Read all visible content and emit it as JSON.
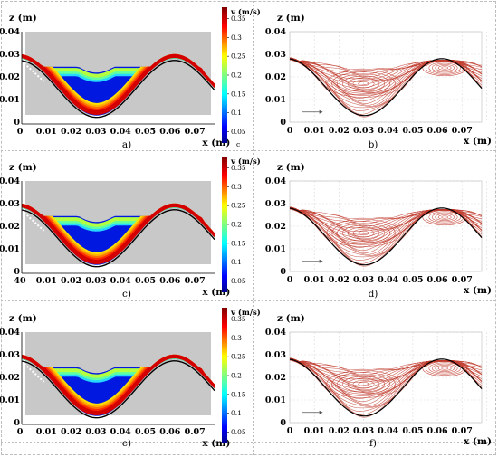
{
  "figure": {
    "panels": [
      {
        "id": "a",
        "caption": "a)",
        "kind": "velocity"
      },
      {
        "id": "b",
        "caption": "b)",
        "kind": "streamlines"
      },
      {
        "id": "c",
        "caption": "c)",
        "kind": "velocity"
      },
      {
        "id": "d",
        "caption": "d)",
        "kind": "streamlines"
      },
      {
        "id": "e",
        "caption": "e)",
        "kind": "velocity"
      },
      {
        "id": "f",
        "caption": "f)",
        "kind": "streamlines"
      }
    ],
    "z_label": "z (m)",
    "x_label": "x (m)",
    "z_ticks": [
      "0.04",
      "0.03",
      "0.02",
      "0.01",
      "0"
    ],
    "x_ticks": [
      "0",
      "0.01",
      "0.02",
      "0.03",
      "0.04",
      "0.05",
      "0.06",
      "0.07"
    ],
    "x_ticks_c": [
      "40",
      "0.01",
      "0.02",
      "0.03",
      "0.04",
      "0.05",
      "0.06",
      "0.07"
    ],
    "colorbar_title": "v (m/s)",
    "colorbar_ticks": [
      "0.35",
      "0.3",
      "0.25",
      "0.2",
      "0.15",
      "0.1",
      "0.05"
    ],
    "stray_mark_a": "c"
  },
  "chart_data": [
    {
      "type": "heatmap",
      "panel": "a",
      "quantity": "v",
      "unit": "m/s",
      "colorbar": [
        0.05,
        0.35
      ],
      "xlabel": "x (m)",
      "ylabel": "z (m)",
      "xlim": [
        0,
        0.078
      ],
      "ylim": [
        0,
        0.04
      ]
    },
    {
      "type": "heatmap",
      "panel": "c",
      "quantity": "v",
      "unit": "m/s",
      "colorbar": [
        0.05,
        0.35
      ],
      "xlabel": "x (m)",
      "ylabel": "z (m)",
      "xlim": [
        0,
        0.078
      ],
      "ylim": [
        0,
        0.04
      ]
    },
    {
      "type": "heatmap",
      "panel": "e",
      "quantity": "v",
      "unit": "m/s",
      "colorbar": [
        0.05,
        0.35
      ],
      "xlabel": "x (m)",
      "ylabel": "z (m)",
      "xlim": [
        0,
        0.078
      ],
      "ylim": [
        0,
        0.04
      ]
    }
  ],
  "colors": {
    "background_gray": "#c8c8c8",
    "streamline": "#c0392b",
    "grid": "#d9d9d9"
  }
}
